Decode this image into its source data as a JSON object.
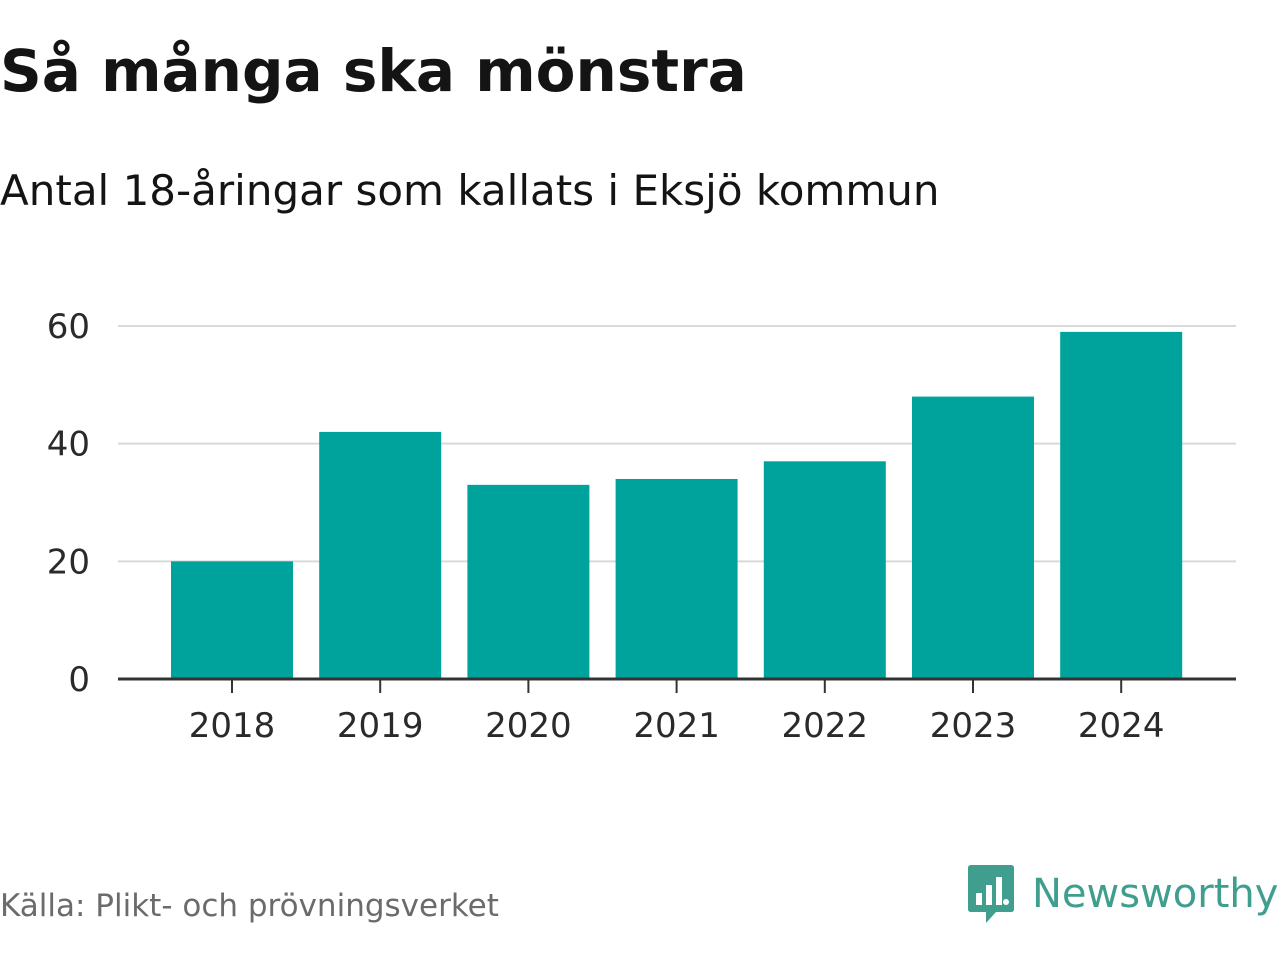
{
  "header": {
    "title": "Så många ska mönstra",
    "subtitle": "Antal 18-åringar som kallats i Eksjö kommun"
  },
  "footer": {
    "source": "Källa: Plikt- och prövningsverket",
    "brand": "Newsworthy",
    "brand_icon": "bar-chart-speech-icon",
    "brand_color": "#3f9e8e"
  },
  "chart_data": {
    "type": "bar",
    "title": "Så många ska mönstra",
    "subtitle": "Antal 18-åringar som kallats i Eksjö kommun",
    "categories": [
      "2018",
      "2019",
      "2020",
      "2021",
      "2022",
      "2023",
      "2024"
    ],
    "values": [
      20,
      42,
      33,
      34,
      37,
      48,
      59
    ],
    "ylim": [
      0,
      60
    ],
    "yticks": [
      0,
      20,
      40,
      60
    ],
    "xlabel": "",
    "ylabel": "",
    "grid": true,
    "bar_color": "#00a39b",
    "grid_color": "#d9d9d9",
    "axis_color": "#333333"
  }
}
